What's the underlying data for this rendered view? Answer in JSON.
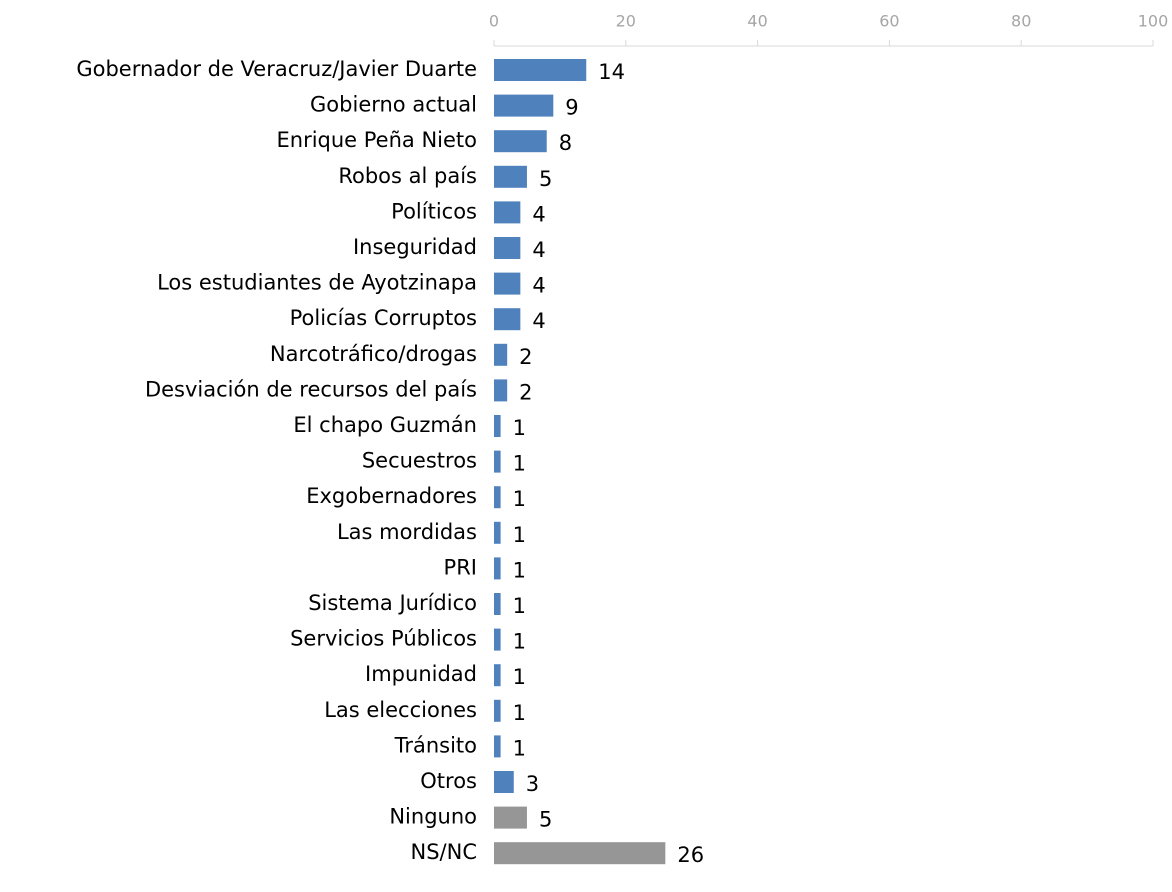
{
  "chart_data": {
    "type": "hbar",
    "categories": [
      "Gobernador de Veracruz/Javier Duarte",
      "Gobierno actual",
      "Enrique Peña Nieto",
      "Robos al país",
      "Políticos",
      "Inseguridad",
      "Los estudiantes de Ayotzinapa",
      "Policías Corruptos",
      "Narcotráfico/drogas",
      "Desviación de recursos del país",
      "El chapo Guzmán",
      "Secuestros",
      "Exgobernadores",
      "Las mordidas",
      "PRI",
      "Sistema Jurídico",
      "Servicios Públicos",
      "Impunidad",
      "Las elecciones",
      "Tránsito",
      "Otros",
      "Ninguno",
      "NS/NC"
    ],
    "values": [
      14,
      9,
      8,
      5,
      4,
      4,
      4,
      4,
      2,
      2,
      1,
      1,
      1,
      1,
      1,
      1,
      1,
      1,
      1,
      1,
      3,
      5,
      26
    ],
    "colors": [
      "#4f81bd",
      "#4f81bd",
      "#4f81bd",
      "#4f81bd",
      "#4f81bd",
      "#4f81bd",
      "#4f81bd",
      "#4f81bd",
      "#4f81bd",
      "#4f81bd",
      "#4f81bd",
      "#4f81bd",
      "#4f81bd",
      "#4f81bd",
      "#4f81bd",
      "#4f81bd",
      "#4f81bd",
      "#4f81bd",
      "#4f81bd",
      "#4f81bd",
      "#4f81bd",
      "#969696",
      "#969696"
    ],
    "xlim": [
      0,
      100
    ],
    "xticks": [
      0,
      20,
      40,
      60,
      80,
      100
    ]
  }
}
